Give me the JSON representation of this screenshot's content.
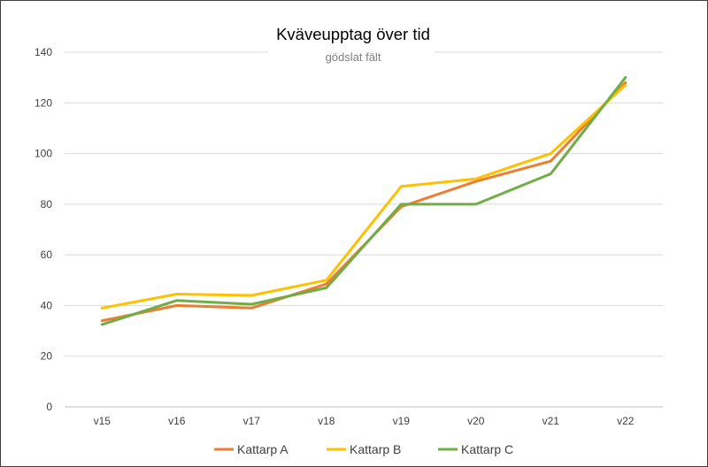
{
  "chart_data": {
    "type": "line",
    "title": "Kväveupptag över tid",
    "subtitle": "gödslat fält",
    "xlabel": "",
    "ylabel": "",
    "categories": [
      "v15",
      "v16",
      "v17",
      "v18",
      "v19",
      "v20",
      "v21",
      "v22"
    ],
    "ylim": [
      0,
      140
    ],
    "yticks": [
      0,
      20,
      40,
      60,
      80,
      100,
      120,
      140
    ],
    "grid": true,
    "legend_position": "bottom",
    "series": [
      {
        "name": "Kattarp A",
        "color": "#ed7d31",
        "values": [
          34,
          40,
          39,
          48.5,
          79,
          89,
          97,
          128
        ]
      },
      {
        "name": "Kattarp B",
        "color": "#ffc000",
        "values": [
          39,
          44.5,
          44,
          50,
          87,
          90,
          100,
          127
        ]
      },
      {
        "name": "Kattarp C",
        "color": "#70ad47",
        "values": [
          32.5,
          42,
          40.5,
          47,
          80,
          80,
          92,
          130
        ]
      }
    ]
  }
}
